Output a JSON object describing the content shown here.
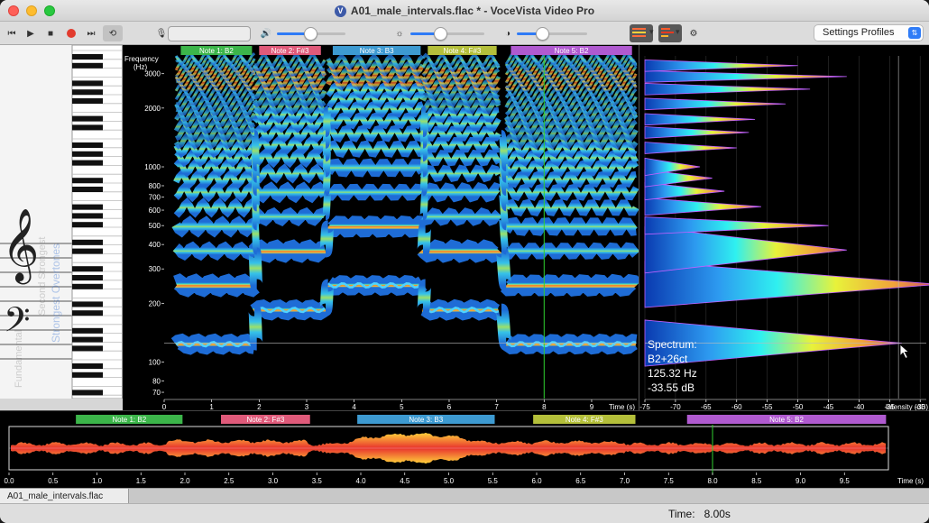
{
  "window": {
    "title": "A01_male_intervals.flac *  - VoceVista Video Pro",
    "logo": "V"
  },
  "toolbar": {
    "settings_profiles": "Settings Profiles",
    "icons": [
      "skip-back-icon",
      "play-icon",
      "stop-icon",
      "record-icon",
      "skip-forward-icon",
      "loop-icon",
      "microphone-icon",
      "volume-icon",
      "brightness-icon",
      "contrast-icon",
      "spectrogram-mode-icon",
      "spectrum-mode-icon",
      "gear-icon"
    ],
    "volume_level": 0.55,
    "brightness_level": 0.4,
    "contrast_level": 0.35
  },
  "piano": {
    "overlay_text_1": "Strongest Overtones",
    "overlay_text_2": "Second Strongest",
    "overlay_text_3": "Fundamental"
  },
  "spectrogram": {
    "notes": [
      {
        "label": "Note 1: B2",
        "start": 0.35,
        "end": 1.85,
        "color": "#3cb54a"
      },
      {
        "label": "Note 2: F#3",
        "start": 2.0,
        "end": 3.3,
        "color": "#e05a7a"
      },
      {
        "label": "Note 3: B3",
        "start": 3.55,
        "end": 5.4,
        "color": "#3d9ad1"
      },
      {
        "label": "Note 4: F#3",
        "start": 5.55,
        "end": 7.0,
        "color": "#b4bf3a"
      },
      {
        "label": "Note 5: B2",
        "start": 7.3,
        "end": 9.85,
        "color": "#b05ad0"
      }
    ],
    "freq_label_1": "Frequency",
    "freq_label_2": "(Hz)",
    "freq_ticks": [
      70,
      80,
      100,
      200,
      300,
      400,
      500,
      600,
      700,
      800,
      1000,
      2000,
      3000
    ],
    "time_ticks": [
      0,
      1,
      2,
      3,
      4,
      5,
      6,
      7,
      8,
      9
    ],
    "time_label": "Time (s)",
    "cursor_time": 8.0
  },
  "spectrum": {
    "readout": {
      "title": "Spectrum:",
      "note": "B2+26ct",
      "freq": "125.32 Hz",
      "db": "-33.55 dB"
    },
    "intensity_ticks": [
      -75,
      -70,
      -65,
      -60,
      -55,
      -50,
      -45,
      -40,
      -35,
      -30
    ],
    "intensity_label": "Intensity (dB)",
    "peaks": [
      {
        "freq": 125,
        "db": -33
      },
      {
        "freq": 250,
        "db": -27
      },
      {
        "freq": 375,
        "db": -42
      },
      {
        "freq": 500,
        "db": -45
      },
      {
        "freq": 625,
        "db": -56
      },
      {
        "freq": 750,
        "db": -62
      },
      {
        "freq": 875,
        "db": -64
      },
      {
        "freq": 1000,
        "db": -66
      },
      {
        "freq": 1250,
        "db": -60
      },
      {
        "freq": 1500,
        "db": -58
      },
      {
        "freq": 1750,
        "db": -57
      },
      {
        "freq": 2100,
        "db": -52
      },
      {
        "freq": 2500,
        "db": -48
      },
      {
        "freq": 2900,
        "db": -42
      },
      {
        "freq": 3300,
        "db": -50
      }
    ]
  },
  "waveform": {
    "notes": [
      {
        "label": "Note 1: B2",
        "start": 0.35,
        "end": 1.85,
        "color": "#3cb54a"
      },
      {
        "label": "Note 2: F#3",
        "start": 2.0,
        "end": 3.3,
        "color": "#e05a7a"
      },
      {
        "label": "Note 3: B3",
        "start": 3.55,
        "end": 5.4,
        "color": "#3d9ad1"
      },
      {
        "label": "Note 4: F#3",
        "start": 5.55,
        "end": 7.0,
        "color": "#b4bf3a"
      },
      {
        "label": "Note 5: B2",
        "start": 7.3,
        "end": 9.85,
        "color": "#b05ad0"
      }
    ],
    "time_ticks": [
      0.0,
      0.5,
      1.0,
      1.5,
      2.0,
      2.5,
      3.0,
      3.5,
      4.0,
      4.5,
      5.0,
      5.5,
      6.0,
      6.5,
      7.0,
      7.5,
      8.0,
      8.5,
      9.0,
      9.5
    ],
    "time_label": "Time (s)",
    "cursor_time": 8.0
  },
  "file_tab": {
    "label": "A01_male_intervals.flac"
  },
  "status": {
    "time_label": "Time:",
    "time_value": "8.00s"
  }
}
